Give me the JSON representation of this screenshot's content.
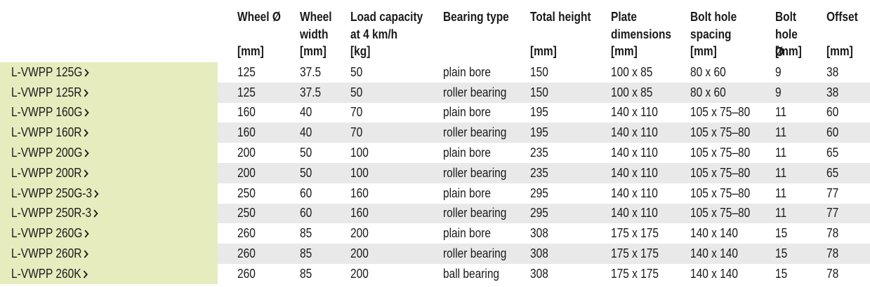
{
  "headers": [
    {
      "title": "Wheel Ø",
      "unit": "[mm]"
    },
    {
      "title": "Wheel width",
      "unit": "[mm]"
    },
    {
      "title": "Load capacity at 4 km/h",
      "unit": "[kg]"
    },
    {
      "title": "Bearing type",
      "unit": ""
    },
    {
      "title": "Total height",
      "unit": "[mm]"
    },
    {
      "title": "Plate dimensions",
      "unit": "[mm]"
    },
    {
      "title": "Bolt hole spacing",
      "unit": "[mm]"
    },
    {
      "title": "Bolt hole Ø",
      "unit": "[mm]"
    },
    {
      "title": "Offset",
      "unit": "[mm]"
    }
  ],
  "rows": [
    {
      "name": "L-VWPP 125G",
      "cells": [
        "125",
        "37.5",
        "50",
        "plain bore",
        "150",
        "100 x 85",
        "80 x 60",
        "9",
        "38"
      ]
    },
    {
      "name": "L-VWPP 125R",
      "cells": [
        "125",
        "37.5",
        "50",
        "roller bearing",
        "150",
        "100 x 85",
        "80 x 60",
        "9",
        "38"
      ]
    },
    {
      "name": "L-VWPP 160G",
      "cells": [
        "160",
        "40",
        "70",
        "plain bore",
        "195",
        "140 x 110",
        "105 x 75–80",
        "11",
        "60"
      ]
    },
    {
      "name": "L-VWPP 160R",
      "cells": [
        "160",
        "40",
        "70",
        "roller bearing",
        "195",
        "140 x 110",
        "105 x 75–80",
        "11",
        "60"
      ]
    },
    {
      "name": "L-VWPP 200G",
      "cells": [
        "200",
        "50",
        "100",
        "plain bore",
        "235",
        "140 x 110",
        "105 x 75–80",
        "11",
        "65"
      ]
    },
    {
      "name": "L-VWPP 200R",
      "cells": [
        "200",
        "50",
        "100",
        "roller bearing",
        "235",
        "140 x 110",
        "105 x 75–80",
        "11",
        "65"
      ]
    },
    {
      "name": "L-VWPP 250G-3",
      "cells": [
        "250",
        "60",
        "160",
        "plain bore",
        "295",
        "140 x 110",
        "105 x 75–80",
        "11",
        "77"
      ]
    },
    {
      "name": "L-VWPP 250R-3",
      "cells": [
        "250",
        "60",
        "160",
        "roller bearing",
        "295",
        "140 x 110",
        "105 x 75–80",
        "11",
        "77"
      ]
    },
    {
      "name": "L-VWPP 260G",
      "cells": [
        "260",
        "85",
        "200",
        "plain bore",
        "308",
        "175 x 175",
        "140 x 140",
        "15",
        "78"
      ]
    },
    {
      "name": "L-VWPP 260R",
      "cells": [
        "260",
        "85",
        "200",
        "roller bearing",
        "308",
        "175 x 175",
        "140 x 140",
        "15",
        "78"
      ]
    },
    {
      "name": "L-VWPP 260K",
      "cells": [
        "260",
        "85",
        "200",
        "ball bearing",
        "308",
        "175 x 175",
        "140 x 140",
        "15",
        "78"
      ]
    }
  ],
  "colors": {
    "name_column_bg": "#e6ecbe",
    "stripe_bg": "#e9e9e9",
    "text": "#1a1a1a"
  },
  "icons": {
    "row_link": "chevron-right-icon"
  }
}
